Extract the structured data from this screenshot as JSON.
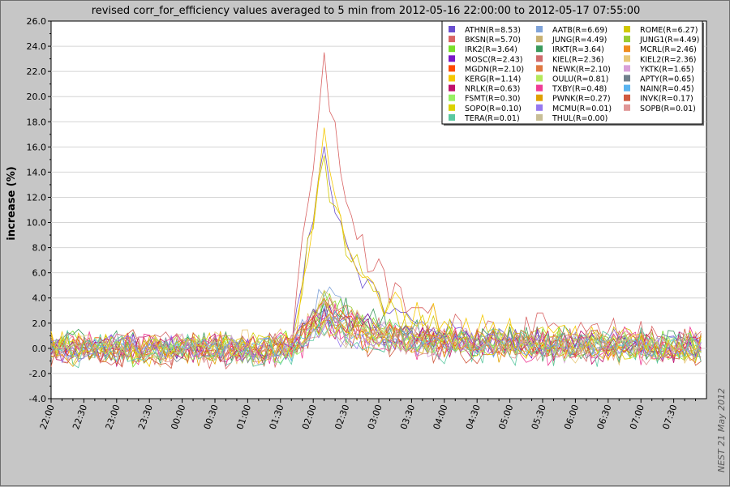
{
  "chart_data": {
    "type": "line",
    "title": "revised corr_for_efficiency values averaged to 5 min from 2012-05-16 22:00:00 to 2012-05-17 07:55:00",
    "xlabel": "",
    "ylabel": "increase (%)",
    "ylim": [
      -4.0,
      26.0
    ],
    "yticks": [
      "-4.0",
      "-2.0",
      "0.0",
      "2.0",
      "4.0",
      "6.0",
      "8.0",
      "10.0",
      "12.0",
      "14.0",
      "16.0",
      "18.0",
      "20.0",
      "22.0",
      "24.0",
      "26.0"
    ],
    "xticks": [
      "22:00",
      "22:30",
      "23:00",
      "23:30",
      "00:00",
      "00:30",
      "01:00",
      "01:30",
      "02:00",
      "02:30",
      "03:00",
      "03:30",
      "04:00",
      "04:30",
      "05:00",
      "05:30",
      "06:00",
      "06:30",
      "07:00",
      "07:30"
    ],
    "x_start": "2012-05-16 22:00:00",
    "x_end": "2012-05-17 07:55:00",
    "x_step_minutes": 5,
    "grid": true,
    "legend_position": "top-right",
    "credit": "NEST 21 May 2012",
    "series": [
      {
        "name": "ATHN(R=8.53)",
        "color": "#6a4fd0",
        "peak": 15.8,
        "late": 2.0
      },
      {
        "name": "AATB(R=6.69)",
        "color": "#7fa3d9",
        "peak": 4.5,
        "late": 1.0
      },
      {
        "name": "ROME(R=6.27)",
        "color": "#d2c800",
        "peak": 15.2,
        "late": 1.5
      },
      {
        "name": "BKSN(R=5.70)",
        "color": "#d96464",
        "peak": 22.8,
        "late": 3.0
      },
      {
        "name": "JUNG(R=4.49)",
        "color": "#c8b070",
        "peak": 3.5,
        "late": 0.8
      },
      {
        "name": "JUNG1(R=4.49)",
        "color": "#9acb32",
        "peak": 3.5,
        "late": 0.8
      },
      {
        "name": "IRK2(R=3.64)",
        "color": "#78e02a",
        "peak": 4.2,
        "late": 0.8
      },
      {
        "name": "IRKT(R=3.64)",
        "color": "#3a9a5c",
        "peak": 3.8,
        "late": 0.8
      },
      {
        "name": "MCRL(R=2.46)",
        "color": "#f08c1e",
        "peak": 3.5,
        "late": 0.6
      },
      {
        "name": "MOSC(R=2.43)",
        "color": "#7a18c8",
        "peak": 3.5,
        "late": 0.6
      },
      {
        "name": "KIEL(R=2.36)",
        "color": "#d06a6a",
        "peak": 3.5,
        "late": 0.6
      },
      {
        "name": "KIEL2(R=2.36)",
        "color": "#e8c878",
        "peak": 3.5,
        "late": 0.6
      },
      {
        "name": "MGDN(R=2.10)",
        "color": "#ff4a00",
        "peak": 3.2,
        "late": 0.5
      },
      {
        "name": "NEWK(R=2.10)",
        "color": "#e07840",
        "peak": 3.2,
        "late": 0.5
      },
      {
        "name": "YKTK(R=1.65)",
        "color": "#d8a0d8",
        "peak": 2.8,
        "late": 0.5
      },
      {
        "name": "KERG(R=1.14)",
        "color": "#f5c800",
        "peak": 16.6,
        "late": 2.5
      },
      {
        "name": "OULU(R=0.81)",
        "color": "#b4e85a",
        "peak": 3.0,
        "late": 0.5
      },
      {
        "name": "APTY(R=0.65)",
        "color": "#70808c",
        "peak": 2.8,
        "late": 0.5
      },
      {
        "name": "NRLK(R=0.63)",
        "color": "#c0106c",
        "peak": 2.5,
        "late": 0.4
      },
      {
        "name": "TXBY(R=0.48)",
        "color": "#f03c96",
        "peak": 2.5,
        "late": 0.4
      },
      {
        "name": "NAIN(R=0.45)",
        "color": "#5ab4f0",
        "peak": 2.5,
        "late": 0.4
      },
      {
        "name": "FSMT(R=0.30)",
        "color": "#96f064",
        "peak": 2.2,
        "late": 0.4
      },
      {
        "name": "PWNK(R=0.27)",
        "color": "#e0a000",
        "peak": 2.2,
        "late": 0.4
      },
      {
        "name": "INVK(R=0.17)",
        "color": "#d05a40",
        "peak": 2.0,
        "late": 0.3
      },
      {
        "name": "SOPO(R=0.10)",
        "color": "#dcd200",
        "peak": 2.0,
        "late": 0.3
      },
      {
        "name": "MCMU(R=0.01)",
        "color": "#9678f0",
        "peak": 1.8,
        "late": 0.3
      },
      {
        "name": "SOPB(R=0.01)",
        "color": "#e09696",
        "peak": 1.8,
        "late": 0.3
      },
      {
        "name": "TERA(R=0.01)",
        "color": "#5ac8a0",
        "peak": 1.8,
        "late": 0.3
      },
      {
        "name": "THUL(R=0.00)",
        "color": "#c8be96",
        "peak": 1.5,
        "late": 0.3
      }
    ]
  }
}
